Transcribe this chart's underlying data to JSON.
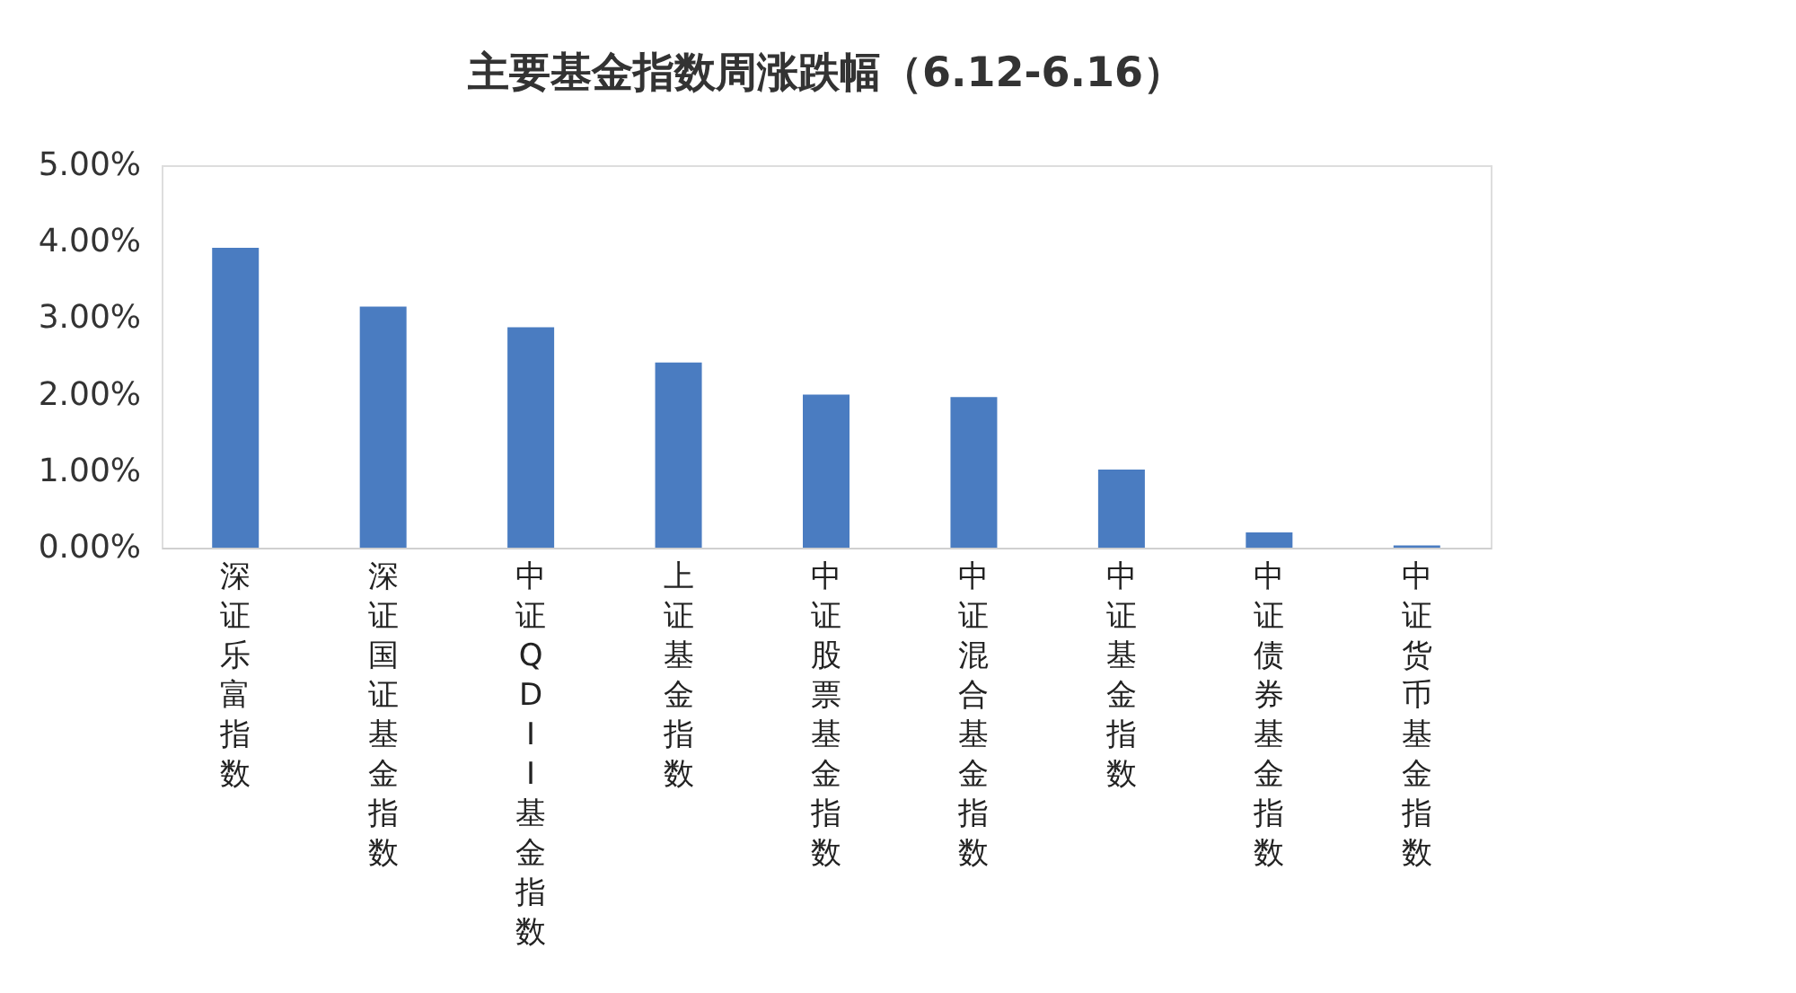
{
  "chart_data": {
    "type": "bar",
    "title": "主要基金指数周涨跌幅（6.12-6.16）",
    "categories": [
      "深证乐富指数",
      "深证国证基金指数",
      "中证QDII基金指数",
      "上证基金指数",
      "中证股票基金指数",
      "中证混合基金指数",
      "中证基金指数",
      "中证债券基金指数",
      "中证货币基金指数"
    ],
    "values": [
      3.92,
      3.15,
      2.88,
      2.42,
      2.0,
      1.97,
      1.02,
      0.2,
      0.03
    ],
    "color": "#4a7cc1",
    "ylim": [
      0,
      5
    ],
    "yticks": [
      {
        "value": 0,
        "label": "0.00%"
      },
      {
        "value": 1,
        "label": "1.00%"
      },
      {
        "value": 2,
        "label": "2.00%"
      },
      {
        "value": 3,
        "label": "3.00%"
      },
      {
        "value": 4,
        "label": "4.00%"
      },
      {
        "value": 5,
        "label": "5.00%"
      }
    ],
    "grid": false
  }
}
